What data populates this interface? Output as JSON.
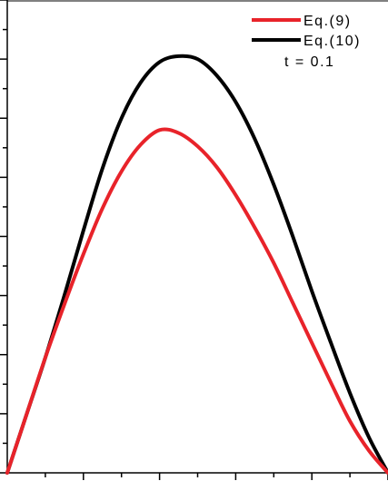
{
  "chart_data": {
    "type": "line",
    "title": "",
    "xlabel": "",
    "ylabel": "",
    "xlim": [
      0,
      1
    ],
    "ylim": [
      0,
      1.6
    ],
    "grid": false,
    "legend_position": "top-right",
    "annotation": "t = 0.1",
    "series": [
      {
        "name": "Eq.(9)",
        "color": "#e8232a",
        "x": [
          0,
          0.05,
          0.1,
          0.15,
          0.2,
          0.25,
          0.3,
          0.35,
          0.4,
          0.45,
          0.5,
          0.55,
          0.6,
          0.65,
          0.7,
          0.75,
          0.8,
          0.85,
          0.9,
          0.95,
          1.0
        ],
        "y": [
          0,
          0.195,
          0.39,
          0.57,
          0.74,
          0.895,
          1.02,
          1.11,
          1.16,
          1.15,
          1.105,
          1.035,
          0.94,
          0.83,
          0.71,
          0.575,
          0.44,
          0.305,
          0.175,
          0.075,
          0
        ]
      },
      {
        "name": "Eq.(10)",
        "color": "#000000",
        "x": [
          0,
          0.05,
          0.1,
          0.15,
          0.2,
          0.25,
          0.3,
          0.35,
          0.4,
          0.45,
          0.5,
          0.55,
          0.6,
          0.65,
          0.7,
          0.75,
          0.8,
          0.85,
          0.9,
          0.95,
          1.0
        ],
        "y": [
          0,
          0.195,
          0.39,
          0.6,
          0.82,
          1.03,
          1.2,
          1.32,
          1.39,
          1.41,
          1.4,
          1.345,
          1.255,
          1.13,
          0.975,
          0.8,
          0.615,
          0.44,
          0.27,
          0.12,
          0
        ]
      }
    ]
  }
}
